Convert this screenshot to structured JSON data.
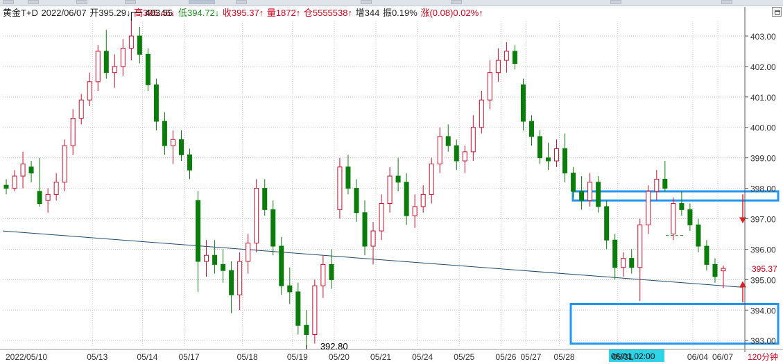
{
  "window": {
    "title": "黄金T+D"
  },
  "toolbar": {
    "expand_icon": "maximize-icon"
  },
  "colors": {
    "up": "#c8102e",
    "down": "#0a7d0a",
    "highlight_box": "#2196f3",
    "trendline": "#1d4a6e",
    "grid": "#c8c8c8",
    "last_price_tag": "#d0021b",
    "time_cursor_bg": "#2fd3e6"
  },
  "info": {
    "symbol": "黄金T+D",
    "date": "2022/06/07",
    "open": "开395.29↓",
    "high": "高395.46↓",
    "low": "低394.72↓",
    "close": "收395.37↑",
    "volume": "量1872↑",
    "position": "仓5555538↑",
    "increase": "增344",
    "amplitude": "振0.19%",
    "change": "涨(0.08)0.02%↑"
  },
  "chart_data": {
    "type": "candlestick",
    "period": "120分钟",
    "ylim": [
      392.8,
      403.5
    ],
    "y_ticks": [
      "403.00",
      "402.00",
      "401.00",
      "400.00",
      "399.00",
      "398.00",
      "397.00",
      "396.00",
      "395.00",
      "394.00",
      "393.00"
    ],
    "x_labels": [
      "2022/05/10",
      "05/13",
      "05/14",
      "05/17",
      "05/18",
      "05/19",
      "05/20",
      "05/21",
      "05/24",
      "05/25",
      "05/26",
      "05/27",
      "05/28",
      "05/31",
      "06/01,02:00",
      "06/04",
      "06/07"
    ],
    "annotations": {
      "max_label": "403.55",
      "min_label": "392.80",
      "last_price": "395.37",
      "cursor_time": "06/01,02:00",
      "period": "120分钟"
    },
    "last_price": 395.37,
    "trendline": {
      "start": 396.6,
      "end": 394.75
    },
    "dashed_level": 396.45,
    "highlight_zones": [
      [
        397.6,
        397.9
      ],
      [
        392.9,
        394.2
      ]
    ],
    "candles": [
      [
        398.1,
        398.3,
        397.8,
        398.0
      ],
      [
        398.0,
        398.6,
        397.9,
        398.4
      ],
      [
        398.4,
        399.2,
        398.0,
        398.8
      ],
      [
        398.7,
        398.9,
        398.2,
        398.5
      ],
      [
        397.9,
        399.0,
        397.4,
        397.5
      ],
      [
        397.6,
        398.0,
        397.2,
        397.8
      ],
      [
        397.8,
        398.5,
        397.6,
        398.2
      ],
      [
        398.2,
        399.6,
        397.9,
        399.4
      ],
      [
        399.4,
        400.6,
        399.1,
        400.3
      ],
      [
        400.3,
        401.1,
        400.1,
        400.9
      ],
      [
        400.9,
        401.8,
        400.7,
        401.5
      ],
      [
        401.5,
        402.7,
        401.2,
        402.5
      ],
      [
        402.5,
        403.2,
        401.6,
        401.8
      ],
      [
        401.8,
        402.4,
        401.3,
        402.0
      ],
      [
        402.0,
        402.9,
        401.7,
        402.6
      ],
      [
        402.6,
        403.55,
        402.2,
        403.0
      ],
      [
        403.0,
        403.3,
        402.1,
        402.4
      ],
      [
        402.4,
        402.6,
        401.2,
        401.4
      ],
      [
        401.4,
        401.6,
        399.9,
        400.2
      ],
      [
        400.2,
        400.5,
        399.1,
        399.4
      ],
      [
        399.4,
        399.9,
        398.8,
        399.6
      ],
      [
        399.6,
        399.9,
        398.9,
        399.1
      ],
      [
        399.1,
        399.3,
        398.3,
        398.6
      ],
      [
        397.6,
        397.9,
        394.6,
        395.6
      ],
      [
        395.6,
        396.3,
        395.1,
        395.8
      ],
      [
        395.8,
        396.3,
        395.2,
        395.5
      ],
      [
        395.5,
        396.0,
        394.9,
        395.3
      ],
      [
        395.3,
        395.6,
        393.9,
        394.5
      ],
      [
        394.5,
        395.9,
        394.0,
        395.6
      ],
      [
        395.6,
        396.5,
        395.2,
        396.2
      ],
      [
        396.2,
        398.3,
        395.9,
        398.0
      ],
      [
        398.0,
        398.3,
        397.1,
        397.3
      ],
      [
        397.3,
        397.6,
        395.8,
        396.1
      ],
      [
        396.1,
        396.4,
        394.5,
        394.8
      ],
      [
        394.8,
        395.4,
        394.2,
        394.6
      ],
      [
        394.6,
        394.9,
        393.2,
        393.5
      ],
      [
        393.5,
        394.0,
        392.8,
        393.2
      ],
      [
        393.2,
        395.0,
        392.9,
        394.8
      ],
      [
        394.8,
        395.8,
        394.4,
        395.5
      ],
      [
        395.5,
        396.0,
        394.7,
        395.0
      ],
      [
        397.3,
        399.0,
        397.0,
        398.7
      ],
      [
        398.7,
        399.1,
        397.8,
        398.0
      ],
      [
        398.0,
        398.3,
        396.9,
        397.2
      ],
      [
        397.2,
        397.6,
        395.8,
        396.1
      ],
      [
        396.1,
        396.9,
        395.5,
        396.6
      ],
      [
        396.6,
        397.8,
        396.3,
        397.5
      ],
      [
        397.5,
        398.7,
        397.2,
        398.4
      ],
      [
        398.4,
        399.0,
        397.9,
        398.2
      ],
      [
        398.2,
        398.5,
        396.8,
        397.1
      ],
      [
        397.1,
        397.8,
        396.7,
        397.4
      ],
      [
        397.4,
        398.1,
        397.2,
        397.8
      ],
      [
        397.8,
        399.0,
        397.5,
        398.8
      ],
      [
        398.8,
        400.0,
        398.5,
        399.7
      ],
      [
        399.7,
        400.1,
        399.2,
        399.4
      ],
      [
        399.4,
        399.6,
        398.6,
        398.9
      ],
      [
        398.9,
        399.4,
        398.5,
        399.2
      ],
      [
        399.2,
        400.4,
        398.9,
        400.0
      ],
      [
        400.0,
        401.2,
        399.8,
        400.9
      ],
      [
        400.9,
        402.2,
        400.6,
        401.8
      ],
      [
        401.8,
        402.6,
        401.5,
        402.2
      ],
      [
        402.2,
        402.8,
        401.8,
        402.5
      ],
      [
        402.5,
        402.7,
        401.9,
        402.1
      ],
      [
        401.4,
        401.6,
        399.9,
        400.2
      ],
      [
        400.2,
        400.4,
        399.4,
        399.7
      ],
      [
        399.7,
        399.9,
        398.8,
        399.0
      ],
      [
        399.0,
        399.5,
        398.6,
        398.9
      ],
      [
        398.9,
        399.6,
        398.7,
        399.3
      ],
      [
        399.3,
        399.8,
        398.2,
        398.5
      ],
      [
        398.5,
        398.7,
        397.7,
        397.9
      ],
      [
        397.9,
        398.4,
        397.3,
        397.6
      ],
      [
        397.6,
        398.5,
        397.4,
        398.2
      ],
      [
        398.2,
        398.4,
        397.2,
        397.4
      ],
      [
        397.4,
        397.6,
        396.0,
        396.3
      ],
      [
        396.3,
        396.5,
        395.0,
        395.4
      ],
      [
        395.4,
        395.9,
        395.1,
        395.7
      ],
      [
        395.7,
        396.0,
        395.2,
        395.4
      ],
      [
        395.4,
        397.0,
        394.3,
        396.8
      ],
      [
        396.8,
        398.1,
        396.5,
        397.9
      ],
      [
        397.9,
        398.6,
        397.6,
        398.3
      ],
      [
        398.3,
        398.9,
        397.9,
        398.0
      ],
      [
        396.5,
        397.7,
        396.3,
        397.5
      ],
      [
        397.5,
        397.9,
        397.1,
        397.3
      ],
      [
        397.3,
        397.5,
        396.6,
        396.8
      ],
      [
        396.8,
        397.0,
        395.9,
        396.1
      ],
      [
        396.1,
        396.3,
        395.3,
        395.5
      ],
      [
        395.5,
        395.7,
        394.9,
        395.1
      ],
      [
        395.29,
        395.46,
        394.72,
        395.37
      ]
    ]
  }
}
